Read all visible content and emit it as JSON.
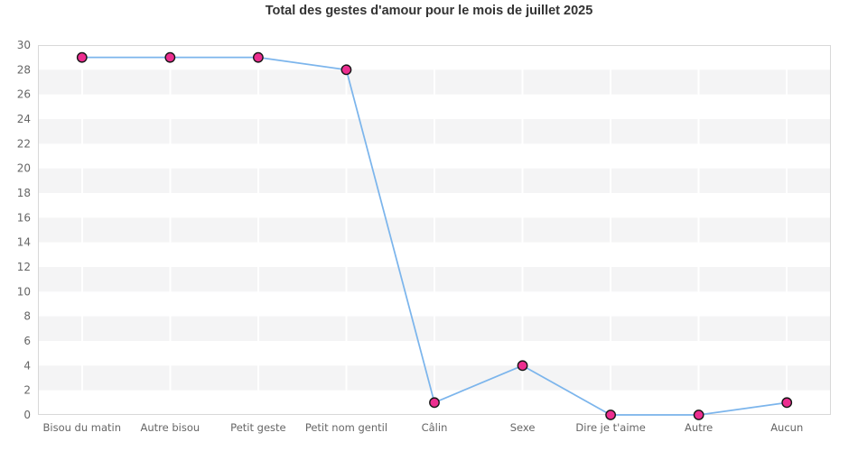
{
  "chart_data": {
    "type": "line",
    "title": "Total des gestes d'amour pour le mois de juillet 2025",
    "categories": [
      "Bisou du matin",
      "Autre bisou",
      "Petit geste",
      "Petit nom gentil",
      "Câlin",
      "Sexe",
      "Dire je t'aime",
      "Autre",
      "Aucun"
    ],
    "values": [
      29,
      29,
      29,
      28,
      1,
      4,
      0,
      0,
      1
    ],
    "xlabel": "",
    "ylabel": "",
    "ylim": [
      0,
      30
    ],
    "ytick_step": 2,
    "yticks": [
      0,
      2,
      4,
      6,
      8,
      10,
      12,
      14,
      16,
      18,
      20,
      22,
      24,
      26,
      28,
      30
    ],
    "legend": "none",
    "grid": {
      "alternating_horizontal_bands": true,
      "gray_band_value_ranges": [
        [
          2,
          4
        ],
        [
          6,
          8
        ],
        [
          10,
          12
        ],
        [
          14,
          16
        ],
        [
          18,
          20
        ],
        [
          22,
          24
        ],
        [
          26,
          28
        ]
      ],
      "vertical_gridlines_at_category_centers": true
    },
    "colors": {
      "background": "#ffffff",
      "band": "#f4f4f5",
      "vertical_gridline": "#ffffff",
      "plot_border": "#d8d8d8",
      "line": "#7cb5ec",
      "marker_fill": "#ec2e90",
      "marker_stroke": "#161616",
      "tick_label": "#666666",
      "title": "#333333"
    }
  }
}
